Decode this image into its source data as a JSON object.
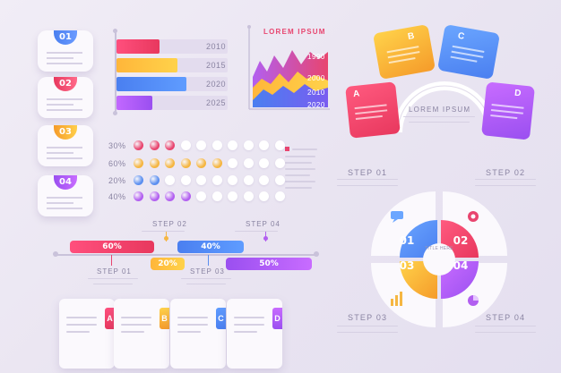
{
  "badges": [
    "01",
    "02",
    "03",
    "04"
  ],
  "bar_chart": {
    "years": [
      "2010",
      "2015",
      "2020",
      "2025"
    ],
    "values": [
      0.4,
      0.62,
      0.68,
      0.45
    ]
  },
  "area_chart": {
    "title": "LOREM IPSUM",
    "years": [
      "1990",
      "2000",
      "2010",
      "2020"
    ]
  },
  "dot_matrix": {
    "rows": [
      {
        "label": "30%",
        "filled": 3,
        "color": "#e8456f"
      },
      {
        "label": "60%",
        "filled": 6,
        "color": "#f5b642"
      },
      {
        "label": "20%",
        "filled": 2,
        "color": "#5b8ff0"
      },
      {
        "label": "40%",
        "filled": 4,
        "color": "#b25ff0"
      }
    ],
    "total": 10
  },
  "timeline": {
    "bars": [
      {
        "label": "60%",
        "step": "STEP 01"
      },
      {
        "label": "20%",
        "step": "STEP 02"
      },
      {
        "label": "40%",
        "step": "STEP 03"
      },
      {
        "label": "50%",
        "step": "STEP 04"
      }
    ],
    "top_steps": [
      "STEP 02",
      "STEP 04"
    ],
    "bottom_steps": [
      "STEP 01",
      "STEP 03"
    ]
  },
  "cards": [
    "A",
    "B",
    "C",
    "D"
  ],
  "radial": {
    "center_title": "LOREM IPSUM",
    "petals": [
      "A",
      "B",
      "C",
      "D"
    ]
  },
  "circle": {
    "center": "TITLE HERE",
    "quadrants": [
      "01",
      "02",
      "03",
      "04"
    ],
    "steps": [
      "STEP 01",
      "STEP 02",
      "STEP 03",
      "STEP 04"
    ]
  },
  "colors": {
    "red": "#e8456f",
    "yellow": "#f5b642",
    "blue": "#5b8ff0",
    "purple": "#b25ff0"
  }
}
